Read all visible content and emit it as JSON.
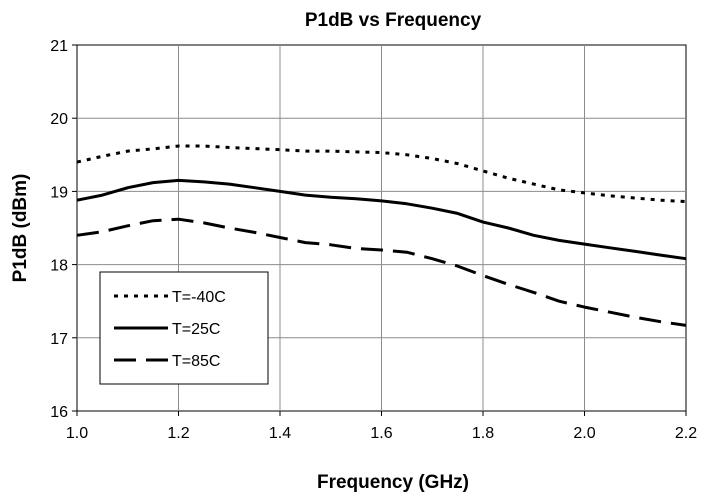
{
  "chart_data": {
    "type": "line",
    "title": "P1dB vs Frequency",
    "xlabel": "Frequency (GHz)",
    "ylabel": "P1dB (dBm)",
    "xlim": [
      1.0,
      2.2
    ],
    "ylim": [
      16,
      21
    ],
    "x_ticks": [
      1.0,
      1.2,
      1.4,
      1.6,
      1.8,
      2.0,
      2.2
    ],
    "x_tick_labels": [
      "1.0",
      "1.2",
      "1.4",
      "1.6",
      "1.8",
      "2.0",
      "2.2"
    ],
    "y_ticks": [
      16,
      17,
      18,
      19,
      20,
      21
    ],
    "y_tick_labels": [
      "16",
      "17",
      "18",
      "19",
      "20",
      "21"
    ],
    "grid": true,
    "legend_position": "bottom-left",
    "series": [
      {
        "name": "T=-40C",
        "dash": "dotted",
        "color": "#000000",
        "x": [
          1.0,
          1.05,
          1.1,
          1.15,
          1.2,
          1.25,
          1.3,
          1.4,
          1.45,
          1.5,
          1.55,
          1.6,
          1.65,
          1.7,
          1.75,
          1.8,
          1.85,
          1.9,
          1.95,
          2.0,
          2.05,
          2.1,
          2.15,
          2.2
        ],
        "y": [
          19.4,
          19.48,
          19.55,
          19.58,
          19.62,
          19.62,
          19.6,
          19.57,
          19.55,
          19.55,
          19.54,
          19.53,
          19.5,
          19.45,
          19.38,
          19.28,
          19.18,
          19.1,
          19.02,
          18.98,
          18.94,
          18.91,
          18.88,
          18.86
        ]
      },
      {
        "name": "T=25C",
        "dash": "solid",
        "color": "#000000",
        "x": [
          1.0,
          1.05,
          1.1,
          1.15,
          1.2,
          1.25,
          1.3,
          1.35,
          1.4,
          1.45,
          1.5,
          1.55,
          1.6,
          1.65,
          1.7,
          1.75,
          1.8,
          1.85,
          1.9,
          1.95,
          2.0,
          2.05,
          2.1,
          2.15,
          2.2
        ],
        "y": [
          18.88,
          18.95,
          19.05,
          19.12,
          19.15,
          19.13,
          19.1,
          19.05,
          19.0,
          18.95,
          18.92,
          18.9,
          18.87,
          18.83,
          18.77,
          18.7,
          18.58,
          18.5,
          18.4,
          18.33,
          18.28,
          18.23,
          18.18,
          18.13,
          18.08
        ]
      },
      {
        "name": "T=85C",
        "dash": "dashed",
        "color": "#000000",
        "x": [
          1.0,
          1.05,
          1.1,
          1.15,
          1.2,
          1.25,
          1.3,
          1.35,
          1.4,
          1.45,
          1.5,
          1.55,
          1.6,
          1.65,
          1.7,
          1.75,
          1.8,
          1.85,
          1.9,
          1.95,
          2.0,
          2.05,
          2.1,
          2.15,
          2.2
        ],
        "y": [
          18.4,
          18.45,
          18.53,
          18.6,
          18.62,
          18.57,
          18.5,
          18.44,
          18.37,
          18.3,
          18.27,
          18.22,
          18.2,
          18.17,
          18.08,
          17.98,
          17.85,
          17.73,
          17.62,
          17.5,
          17.42,
          17.35,
          17.28,
          17.22,
          17.17
        ]
      }
    ]
  }
}
